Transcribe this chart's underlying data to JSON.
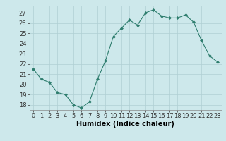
{
  "x": [
    0,
    1,
    2,
    3,
    4,
    5,
    6,
    7,
    8,
    9,
    10,
    11,
    12,
    13,
    14,
    15,
    16,
    17,
    18,
    19,
    20,
    21,
    22,
    23
  ],
  "y": [
    21.5,
    20.5,
    20.2,
    19.2,
    19.0,
    18.0,
    17.7,
    18.3,
    20.5,
    22.3,
    24.7,
    25.5,
    26.3,
    25.8,
    27.0,
    27.3,
    26.7,
    26.5,
    26.5,
    26.8,
    26.1,
    24.3,
    22.8,
    22.2
  ],
  "xlabel": "Humidex (Indice chaleur)",
  "xlim": [
    -0.5,
    23.5
  ],
  "ylim": [
    17.5,
    27.7
  ],
  "yticks": [
    18,
    19,
    20,
    21,
    22,
    23,
    24,
    25,
    26,
    27
  ],
  "xticks": [
    0,
    1,
    2,
    3,
    4,
    5,
    6,
    7,
    8,
    9,
    10,
    11,
    12,
    13,
    14,
    15,
    16,
    17,
    18,
    19,
    20,
    21,
    22,
    23
  ],
  "xtick_labels": [
    "0",
    "1",
    "2",
    "3",
    "4",
    "5",
    "6",
    "7",
    "8",
    "9",
    "10",
    "11",
    "12",
    "13",
    "14",
    "15",
    "16",
    "17",
    "18",
    "19",
    "20",
    "21",
    "22",
    "23"
  ],
  "line_color": "#2e7d6e",
  "marker": "D",
  "marker_size": 2.0,
  "bg_color": "#cde8eb",
  "grid_color": "#b0cfd4",
  "fig_bg": "#cde8eb",
  "tick_fontsize": 6,
  "xlabel_fontsize": 7
}
